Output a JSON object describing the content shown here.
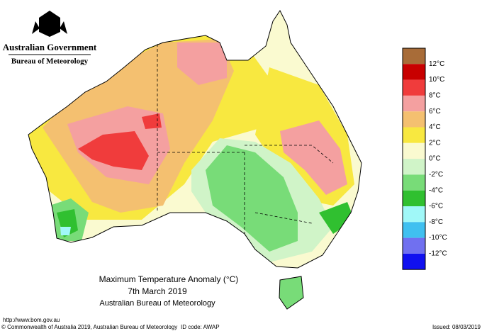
{
  "header": {
    "government": "Australian Government",
    "bureau": "Bureau of Meteorology"
  },
  "legend": {
    "colors": [
      "#a86c38",
      "#c80000",
      "#f03c3c",
      "#f4a0a0",
      "#f4c070",
      "#f8e840",
      "#fafad0",
      "#d0f4c8",
      "#78dc78",
      "#30c030",
      "#a0f8f8",
      "#40c0f0",
      "#7070f0",
      "#1010f0"
    ],
    "labels": [
      "12°C",
      "10°C",
      "8°C",
      "6°C",
      "4°C",
      "2°C",
      "0°C",
      "-2°C",
      "-4°C",
      "-6°C",
      "-8°C",
      "-10°C",
      "-12°C"
    ]
  },
  "caption": {
    "title": "Maximum Temperature Anomaly (°C)",
    "date": "7th March 2019",
    "source": "Australian Bureau of Meteorology"
  },
  "footer": {
    "url": "http://www.bom.gov.au",
    "copyright": "© Commonwealth of Australia 2019, Australian Bureau of Meteorology",
    "id": "ID code: AWAP",
    "issued": "Issued: 08/03/2019"
  }
}
